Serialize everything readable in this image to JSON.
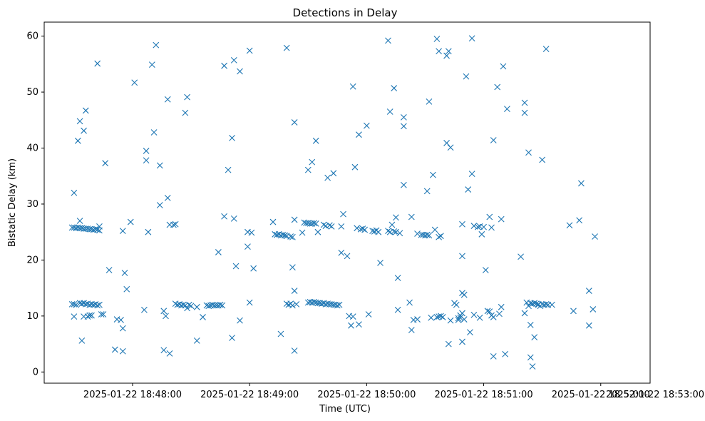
{
  "chart_data": {
    "type": "scatter",
    "title": "Detections in Delay",
    "xlabel": "Time (UTC)",
    "ylabel": "Bistatic Delay (km)",
    "marker": "x",
    "color": "#1f77b4",
    "x_unit": "seconds after 2025-01-22 18:47:00",
    "xlim": [
      14.7,
      325.3
    ],
    "ylim": [
      -2.0,
      62.5
    ],
    "x_ticks": [
      {
        "value": 60,
        "label": "2025-01-22 18:48:00"
      },
      {
        "value": 120,
        "label": "2025-01-22 18:49:00"
      },
      {
        "value": 180,
        "label": "2025-01-22 18:50:00"
      },
      {
        "value": 240,
        "label": "2025-01-22 18:51:00"
      },
      {
        "value": 300,
        "label": "2025-01-22 18:52:00"
      },
      {
        "value": 360,
        "label": "2025-01-22 18:53:00"
      }
    ],
    "y_ticks": [
      {
        "value": 0,
        "label": "0"
      },
      {
        "value": 10,
        "label": "10"
      },
      {
        "value": 20,
        "label": "20"
      },
      {
        "value": 30,
        "label": "30"
      },
      {
        "value": 40,
        "label": "40"
      },
      {
        "value": 50,
        "label": "50"
      },
      {
        "value": 60,
        "label": "60"
      }
    ],
    "points": [
      [
        29,
        25.8
      ],
      [
        30,
        25.8
      ],
      [
        31,
        25.7
      ],
      [
        32,
        25.8
      ],
      [
        33,
        25.7
      ],
      [
        34,
        25.7
      ],
      [
        35,
        25.6
      ],
      [
        36,
        25.6
      ],
      [
        37,
        25.6
      ],
      [
        38,
        25.5
      ],
      [
        39,
        25.5
      ],
      [
        40,
        25.4
      ],
      [
        41,
        25.5
      ],
      [
        42,
        25.4
      ],
      [
        43,
        25.3
      ],
      [
        29,
        12.1
      ],
      [
        30,
        12.1
      ],
      [
        31,
        12.0
      ],
      [
        33,
        12.3
      ],
      [
        34,
        12.2
      ],
      [
        35,
        12.3
      ],
      [
        36,
        12.1
      ],
      [
        37,
        12.2
      ],
      [
        38,
        12.0
      ],
      [
        39,
        12.1
      ],
      [
        40,
        12.0
      ],
      [
        41,
        12.1
      ],
      [
        42,
        11.9
      ],
      [
        43,
        12.0
      ],
      [
        30,
        32.0
      ],
      [
        30,
        9.9
      ],
      [
        32,
        41.3
      ],
      [
        33,
        27.0
      ],
      [
        33,
        44.8
      ],
      [
        34,
        5.6
      ],
      [
        35,
        9.9
      ],
      [
        35,
        43.1
      ],
      [
        36,
        46.7
      ],
      [
        37,
        9.9
      ],
      [
        38,
        10.1
      ],
      [
        39,
        10.1
      ],
      [
        42,
        55.1
      ],
      [
        43,
        26.0
      ],
      [
        44,
        10.3
      ],
      [
        45,
        10.3
      ],
      [
        46,
        37.3
      ],
      [
        48,
        18.2
      ],
      [
        51,
        4.0
      ],
      [
        52,
        9.4
      ],
      [
        54,
        9.3
      ],
      [
        55,
        25.2
      ],
      [
        55,
        7.8
      ],
      [
        55,
        3.7
      ],
      [
        56,
        17.7
      ],
      [
        57,
        14.8
      ],
      [
        59,
        26.8
      ],
      [
        61,
        51.7
      ],
      [
        66,
        11.1
      ],
      [
        67,
        39.5
      ],
      [
        67,
        37.8
      ],
      [
        68,
        25.0
      ],
      [
        70,
        54.9
      ],
      [
        71,
        42.8
      ],
      [
        72,
        58.4
      ],
      [
        74,
        29.8
      ],
      [
        74,
        36.9
      ],
      [
        76,
        10.9
      ],
      [
        76,
        3.9
      ],
      [
        77,
        10.0
      ],
      [
        78,
        31.1
      ],
      [
        78,
        48.7
      ],
      [
        79,
        3.3
      ],
      [
        79,
        26.3
      ],
      [
        81,
        26.3
      ],
      [
        82,
        26.4
      ],
      [
        82,
        12.2
      ],
      [
        83,
        12.0
      ],
      [
        84,
        12.1
      ],
      [
        85,
        11.9
      ],
      [
        86,
        12.0
      ],
      [
        87,
        46.3
      ],
      [
        87,
        11.9
      ],
      [
        88,
        49.1
      ],
      [
        88,
        11.4
      ],
      [
        89,
        12.0
      ],
      [
        90,
        11.8
      ],
      [
        93,
        5.6
      ],
      [
        93,
        11.6
      ],
      [
        96,
        9.8
      ],
      [
        98,
        11.9
      ],
      [
        99,
        11.8
      ],
      [
        100,
        11.9
      ],
      [
        101,
        12.0
      ],
      [
        102,
        11.9
      ],
      [
        103,
        11.9
      ],
      [
        104,
        11.9
      ],
      [
        105,
        12.0
      ],
      [
        106,
        11.9
      ],
      [
        104,
        21.4
      ],
      [
        107,
        27.8
      ],
      [
        107,
        54.7
      ],
      [
        109,
        36.1
      ],
      [
        111,
        41.8
      ],
      [
        111,
        6.1
      ],
      [
        112,
        27.4
      ],
      [
        112,
        55.7
      ],
      [
        113,
        18.9
      ],
      [
        115,
        53.7
      ],
      [
        115,
        9.2
      ],
      [
        119,
        25.0
      ],
      [
        119,
        22.4
      ],
      [
        120,
        57.4
      ],
      [
        120,
        12.4
      ],
      [
        121,
        24.9
      ],
      [
        122,
        18.5
      ],
      [
        132,
        26.8
      ],
      [
        133,
        24.6
      ],
      [
        134,
        24.5
      ],
      [
        135,
        24.6
      ],
      [
        136,
        24.4
      ],
      [
        137,
        24.5
      ],
      [
        138,
        24.4
      ],
      [
        139,
        24.3
      ],
      [
        141,
        24.2
      ],
      [
        142,
        24.1
      ],
      [
        136,
        6.8
      ],
      [
        138,
        24.4
      ],
      [
        139,
        57.9
      ],
      [
        139,
        12.2
      ],
      [
        140,
        12.0
      ],
      [
        141,
        12.2
      ],
      [
        142,
        11.9
      ],
      [
        142,
        18.7
      ],
      [
        143,
        14.5
      ],
      [
        143,
        3.8
      ],
      [
        143,
        44.6
      ],
      [
        143,
        27.2
      ],
      [
        144,
        12.1
      ],
      [
        147,
        24.9
      ],
      [
        148,
        26.7
      ],
      [
        149,
        26.6
      ],
      [
        150,
        26.6
      ],
      [
        151,
        26.5
      ],
      [
        152,
        26.5
      ],
      [
        153,
        26.6
      ],
      [
        154,
        26.5
      ],
      [
        150,
        36.1
      ],
      [
        150,
        12.4
      ],
      [
        151,
        12.5
      ],
      [
        152,
        12.4
      ],
      [
        153,
        12.5
      ],
      [
        154,
        12.4
      ],
      [
        155,
        12.3
      ],
      [
        156,
        12.3
      ],
      [
        157,
        12.2
      ],
      [
        158,
        12.3
      ],
      [
        159,
        12.1
      ],
      [
        160,
        12.2
      ],
      [
        161,
        12.1
      ],
      [
        162,
        12.1
      ],
      [
        163,
        12.0
      ],
      [
        164,
        12.0
      ],
      [
        165,
        11.9
      ],
      [
        166,
        12.0
      ],
      [
        152,
        37.5
      ],
      [
        154,
        41.3
      ],
      [
        155,
        25.0
      ],
      [
        158,
        26.3
      ],
      [
        159,
        26.1
      ],
      [
        160,
        34.7
      ],
      [
        161,
        26.2
      ],
      [
        162,
        26.0
      ],
      [
        163,
        35.5
      ],
      [
        167,
        26.0
      ],
      [
        167,
        21.3
      ],
      [
        168,
        28.2
      ],
      [
        170,
        20.7
      ],
      [
        171,
        10.0
      ],
      [
        172,
        8.3
      ],
      [
        173,
        51.0
      ],
      [
        173,
        9.9
      ],
      [
        174,
        36.6
      ],
      [
        175,
        25.7
      ],
      [
        176,
        42.4
      ],
      [
        176,
        8.5
      ],
      [
        177,
        25.5
      ],
      [
        178,
        25.6
      ],
      [
        179,
        25.4
      ],
      [
        180,
        44.0
      ],
      [
        181,
        10.3
      ],
      [
        183,
        25.2
      ],
      [
        184,
        25.1
      ],
      [
        185,
        25.3
      ],
      [
        186,
        25.0
      ],
      [
        187,
        19.5
      ],
      [
        191,
        59.2
      ],
      [
        191,
        25.2
      ],
      [
        192,
        46.5
      ],
      [
        192,
        25.0
      ],
      [
        193,
        26.3
      ],
      [
        194,
        50.7
      ],
      [
        194,
        25.1
      ],
      [
        195,
        27.6
      ],
      [
        195,
        25.0
      ],
      [
        196,
        16.8
      ],
      [
        196,
        11.1
      ],
      [
        197,
        24.8
      ],
      [
        199,
        33.4
      ],
      [
        199,
        45.5
      ],
      [
        199,
        43.9
      ],
      [
        202,
        12.4
      ],
      [
        203,
        27.7
      ],
      [
        203,
        7.5
      ],
      [
        204,
        9.3
      ],
      [
        206,
        24.7
      ],
      [
        206,
        9.4
      ],
      [
        208,
        24.5
      ],
      [
        209,
        24.5
      ],
      [
        210,
        24.4
      ],
      [
        211,
        32.3
      ],
      [
        211,
        24.5
      ],
      [
        212,
        48.3
      ],
      [
        212,
        24.4
      ],
      [
        213,
        9.7
      ],
      [
        214,
        35.2
      ],
      [
        215,
        25.4
      ],
      [
        216,
        59.5
      ],
      [
        216,
        9.8
      ],
      [
        217,
        57.3
      ],
      [
        217,
        24.1
      ],
      [
        217,
        9.9
      ],
      [
        218,
        24.3
      ],
      [
        218,
        10.0
      ],
      [
        219,
        9.8
      ],
      [
        221,
        56.5
      ],
      [
        221,
        40.9
      ],
      [
        222,
        5.0
      ],
      [
        222,
        57.3
      ],
      [
        223,
        40.1
      ],
      [
        223,
        9.2
      ],
      [
        225,
        12.3
      ],
      [
        226,
        12.0
      ],
      [
        227,
        9.6
      ],
      [
        227,
        9.3
      ],
      [
        228,
        10.1
      ],
      [
        228,
        9.7
      ],
      [
        229,
        26.4
      ],
      [
        229,
        10.5
      ],
      [
        229,
        20.7
      ],
      [
        229,
        14.1
      ],
      [
        229,
        5.4
      ],
      [
        230,
        13.8
      ],
      [
        230,
        9.4
      ],
      [
        231,
        52.8
      ],
      [
        232,
        32.6
      ],
      [
        233,
        7.1
      ],
      [
        234,
        59.6
      ],
      [
        234,
        35.4
      ],
      [
        235,
        26.1
      ],
      [
        235,
        10.2
      ],
      [
        237,
        25.9
      ],
      [
        238,
        26.0
      ],
      [
        238,
        9.7
      ],
      [
        239,
        24.6
      ],
      [
        240,
        25.9
      ],
      [
        241,
        18.2
      ],
      [
        242,
        10.9
      ],
      [
        243,
        27.7
      ],
      [
        243,
        10.8
      ],
      [
        244,
        25.8
      ],
      [
        244,
        10.1
      ],
      [
        245,
        41.4
      ],
      [
        245,
        2.8
      ],
      [
        245,
        9.8
      ],
      [
        247,
        50.9
      ],
      [
        248,
        10.4
      ],
      [
        249,
        27.3
      ],
      [
        249,
        11.6
      ],
      [
        250,
        54.6
      ],
      [
        251,
        3.2
      ],
      [
        252,
        47.0
      ],
      [
        259,
        20.6
      ],
      [
        261,
        48.1
      ],
      [
        261,
        46.3
      ],
      [
        261,
        10.5
      ],
      [
        262,
        12.4
      ],
      [
        263,
        11.8
      ],
      [
        263,
        39.2
      ],
      [
        264,
        12.3
      ],
      [
        264,
        2.6
      ],
      [
        264,
        8.4
      ],
      [
        265,
        12.2
      ],
      [
        265,
        1.0
      ],
      [
        266,
        12.3
      ],
      [
        266,
        6.2
      ],
      [
        267,
        12.2
      ],
      [
        268,
        12.1
      ],
      [
        268,
        12.0
      ],
      [
        269,
        11.8
      ],
      [
        270,
        12.1
      ],
      [
        270,
        37.9
      ],
      [
        271,
        12.0
      ],
      [
        272,
        57.7
      ],
      [
        272,
        12.1
      ],
      [
        273,
        12.0
      ],
      [
        275,
        12.0
      ],
      [
        284,
        26.2
      ],
      [
        286,
        10.9
      ],
      [
        289,
        27.1
      ],
      [
        290,
        33.7
      ],
      [
        294,
        14.5
      ],
      [
        294,
        8.3
      ],
      [
        296,
        11.2
      ],
      [
        297,
        24.2
      ]
    ]
  }
}
